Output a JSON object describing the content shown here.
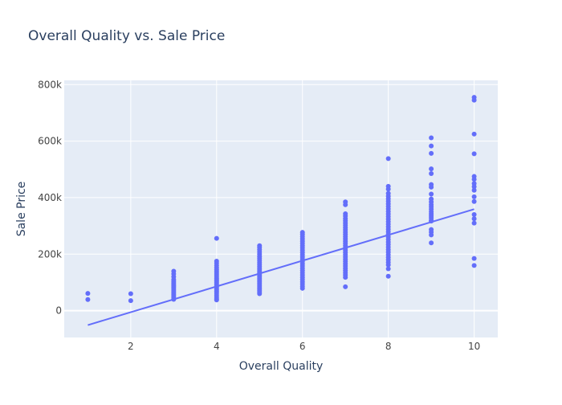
{
  "chart_data": {
    "type": "scatter",
    "title": "Overall Quality vs. Sale Price",
    "xlabel": "Overall Quality",
    "ylabel": "Sale Price",
    "xlim": [
      0.45,
      10.55
    ],
    "ylim": [
      -95000,
      815000
    ],
    "x_ticks": [
      2,
      4,
      6,
      8,
      10
    ],
    "x_tick_labels": [
      "2",
      "4",
      "6",
      "8",
      "10"
    ],
    "y_ticks": [
      0,
      200000,
      400000,
      600000,
      800000
    ],
    "y_tick_labels": [
      "0",
      "200k",
      "400k",
      "600k",
      "800k"
    ],
    "grid": true,
    "legend": "none",
    "colors": {
      "marker": "#636efa",
      "line": "#636efa",
      "plot_bg": "#e5ecf6",
      "grid": "#ffffff",
      "text": "#2a3f5f",
      "tick_text": "#444444"
    },
    "series": [
      {
        "kind": "markers",
        "points": [
          [
            1,
            61000
          ],
          [
            1,
            39300
          ],
          [
            2,
            60000
          ],
          [
            2,
            35311
          ],
          [
            3,
            139600
          ],
          [
            3,
            130000
          ],
          [
            3,
            120000
          ],
          [
            3,
            110000
          ],
          [
            3,
            104000
          ],
          [
            3,
            98000
          ],
          [
            3,
            92000
          ],
          [
            3,
            87000
          ],
          [
            3,
            82000
          ],
          [
            3,
            76000
          ],
          [
            3,
            70000
          ],
          [
            3,
            64000
          ],
          [
            3,
            58000
          ],
          [
            3,
            52000
          ],
          [
            3,
            46000
          ],
          [
            3,
            40000
          ],
          [
            4,
            256000
          ],
          [
            4,
            175000
          ],
          [
            4,
            168000
          ],
          [
            4,
            160000
          ],
          [
            4,
            152000
          ],
          [
            4,
            145000
          ],
          [
            4,
            139000
          ],
          [
            4,
            133000
          ],
          [
            4,
            127000
          ],
          [
            4,
            121000
          ],
          [
            4,
            115000
          ],
          [
            4,
            110000
          ],
          [
            4,
            105000
          ],
          [
            4,
            100000
          ],
          [
            4,
            95000
          ],
          [
            4,
            90000
          ],
          [
            4,
            85000
          ],
          [
            4,
            80000
          ],
          [
            4,
            74000
          ],
          [
            4,
            68000
          ],
          [
            4,
            62000
          ],
          [
            4,
            55000
          ],
          [
            4,
            48000
          ],
          [
            4,
            42000
          ],
          [
            4,
            37900
          ],
          [
            5,
            230000
          ],
          [
            5,
            224000
          ],
          [
            5,
            216000
          ],
          [
            5,
            208000
          ],
          [
            5,
            200000
          ],
          [
            5,
            192000
          ],
          [
            5,
            185000
          ],
          [
            5,
            178000
          ],
          [
            5,
            171000
          ],
          [
            5,
            164000
          ],
          [
            5,
            157000
          ],
          [
            5,
            150000
          ],
          [
            5,
            144000
          ],
          [
            5,
            138000
          ],
          [
            5,
            132000
          ],
          [
            5,
            126000
          ],
          [
            5,
            120000
          ],
          [
            5,
            114000
          ],
          [
            5,
            108000
          ],
          [
            5,
            102000
          ],
          [
            5,
            96000
          ],
          [
            5,
            90000
          ],
          [
            5,
            84000
          ],
          [
            5,
            78000
          ],
          [
            5,
            72000
          ],
          [
            5,
            66000
          ],
          [
            5,
            60000
          ],
          [
            6,
            277000
          ],
          [
            6,
            270000
          ],
          [
            6,
            262000
          ],
          [
            6,
            254000
          ],
          [
            6,
            246000
          ],
          [
            6,
            238000
          ],
          [
            6,
            230000
          ],
          [
            6,
            222000
          ],
          [
            6,
            214000
          ],
          [
            6,
            206000
          ],
          [
            6,
            198000
          ],
          [
            6,
            190000
          ],
          [
            6,
            182000
          ],
          [
            6,
            174000
          ],
          [
            6,
            166000
          ],
          [
            6,
            158000
          ],
          [
            6,
            150000
          ],
          [
            6,
            142000
          ],
          [
            6,
            134000
          ],
          [
            6,
            126000
          ],
          [
            6,
            118000
          ],
          [
            6,
            110000
          ],
          [
            6,
            102000
          ],
          [
            6,
            94000
          ],
          [
            6,
            86000
          ],
          [
            6,
            79000
          ],
          [
            7,
            385000
          ],
          [
            7,
            375000
          ],
          [
            7,
            343000
          ],
          [
            7,
            335000
          ],
          [
            7,
            326000
          ],
          [
            7,
            318000
          ],
          [
            7,
            310000
          ],
          [
            7,
            302000
          ],
          [
            7,
            294000
          ],
          [
            7,
            286000
          ],
          [
            7,
            278000
          ],
          [
            7,
            270000
          ],
          [
            7,
            262000
          ],
          [
            7,
            254000
          ],
          [
            7,
            246000
          ],
          [
            7,
            238000
          ],
          [
            7,
            230000
          ],
          [
            7,
            222000
          ],
          [
            7,
            214000
          ],
          [
            7,
            206000
          ],
          [
            7,
            198000
          ],
          [
            7,
            190000
          ],
          [
            7,
            182000
          ],
          [
            7,
            174000
          ],
          [
            7,
            166000
          ],
          [
            7,
            158000
          ],
          [
            7,
            150000
          ],
          [
            7,
            142000
          ],
          [
            7,
            134000
          ],
          [
            7,
            126000
          ],
          [
            7,
            118000
          ],
          [
            7,
            84500
          ],
          [
            8,
            538000
          ],
          [
            8,
            440000
          ],
          [
            8,
            430000
          ],
          [
            8,
            415000
          ],
          [
            8,
            405000
          ],
          [
            8,
            396000
          ],
          [
            8,
            387000
          ],
          [
            8,
            378000
          ],
          [
            8,
            369000
          ],
          [
            8,
            360000
          ],
          [
            8,
            351000
          ],
          [
            8,
            342000
          ],
          [
            8,
            333000
          ],
          [
            8,
            324000
          ],
          [
            8,
            315000
          ],
          [
            8,
            306000
          ],
          [
            8,
            297000
          ],
          [
            8,
            288000
          ],
          [
            8,
            279000
          ],
          [
            8,
            270000
          ],
          [
            8,
            261000
          ],
          [
            8,
            252000
          ],
          [
            8,
            243000
          ],
          [
            8,
            234000
          ],
          [
            8,
            225000
          ],
          [
            8,
            216000
          ],
          [
            8,
            207000
          ],
          [
            8,
            198000
          ],
          [
            8,
            189000
          ],
          [
            8,
            180000
          ],
          [
            8,
            171000
          ],
          [
            8,
            162000
          ],
          [
            8,
            148000
          ],
          [
            8,
            122000
          ],
          [
            9,
            611657
          ],
          [
            9,
            582933
          ],
          [
            9,
            556581
          ],
          [
            9,
            501837
          ],
          [
            9,
            485000
          ],
          [
            9,
            446261
          ],
          [
            9,
            437154
          ],
          [
            9,
            412500
          ],
          [
            9,
            395192
          ],
          [
            9,
            385000
          ],
          [
            9,
            375000
          ],
          [
            9,
            367294
          ],
          [
            9,
            359100
          ],
          [
            9,
            350000
          ],
          [
            9,
            342643
          ],
          [
            9,
            335000
          ],
          [
            9,
            328000
          ],
          [
            9,
            320000
          ],
          [
            9,
            317000
          ],
          [
            9,
            287090
          ],
          [
            9,
            278000
          ],
          [
            9,
            268000
          ],
          [
            9,
            240000
          ],
          [
            10,
            755000
          ],
          [
            10,
            745000
          ],
          [
            10,
            625000
          ],
          [
            10,
            555000
          ],
          [
            10,
            475000
          ],
          [
            10,
            465000
          ],
          [
            10,
            450000
          ],
          [
            10,
            438780
          ],
          [
            10,
            426000
          ],
          [
            10,
            402861
          ],
          [
            10,
            386250
          ],
          [
            10,
            340000
          ],
          [
            10,
            325000
          ],
          [
            10,
            310000
          ],
          [
            10,
            184750
          ],
          [
            10,
            160000
          ]
        ]
      },
      {
        "kind": "line",
        "points": [
          [
            1,
            -51000
          ],
          [
            10,
            359000
          ]
        ]
      }
    ]
  }
}
